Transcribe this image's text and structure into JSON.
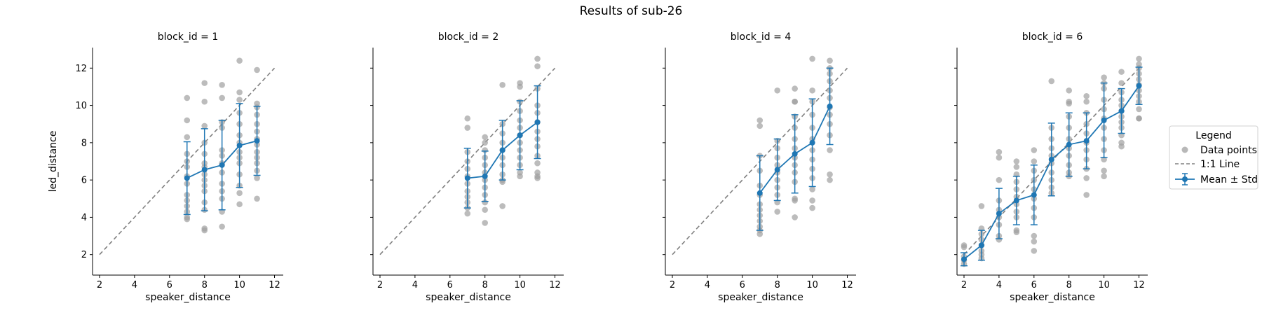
{
  "figure": {
    "title": "Results of sub-26"
  },
  "legend": {
    "title": "Legend",
    "entries": [
      {
        "label": "Data points",
        "kind": "scatter",
        "color": "#a0a0a0"
      },
      {
        "label": "1:1 Line",
        "kind": "dashed-line",
        "color": "#808080"
      },
      {
        "label": "Mean ± Std",
        "kind": "errorbar-line",
        "color": "#1f77b4"
      }
    ]
  },
  "colors": {
    "points": "#a0a0a0",
    "identity_line": "#808080",
    "mean": "#1f77b4"
  },
  "chart_data": [
    {
      "type": "scatter",
      "title": "block_id = 1",
      "xlabel": "speaker_distance",
      "ylabel": "led_distance",
      "xlim": [
        1.6,
        12.5
      ],
      "ylim": [
        0.9,
        13.1
      ],
      "xticks": [
        2,
        4,
        6,
        8,
        10,
        12
      ],
      "yticks": [
        2,
        4,
        6,
        8,
        10,
        12
      ],
      "identity_line": [
        2,
        12
      ],
      "points": {
        "7": [
          10.4,
          9.2,
          8.3,
          7.4,
          7.0,
          6.7,
          6.2,
          5.8,
          5.2,
          4.9,
          4.6,
          4.3,
          4.0,
          3.9
        ],
        "8": [
          11.2,
          10.2,
          8.9,
          8.0,
          7.4,
          6.9,
          6.7,
          6.3,
          6.0,
          5.7,
          5.4,
          4.8,
          4.4,
          3.4,
          3.3
        ],
        "9": [
          11.1,
          10.4,
          9.1,
          8.8,
          7.6,
          7.3,
          6.9,
          6.4,
          5.8,
          5.4,
          5.0,
          4.3,
          3.5
        ],
        "10": [
          12.4,
          10.7,
          10.3,
          9.6,
          9.0,
          8.4,
          8.0,
          7.5,
          7.2,
          6.9,
          6.3,
          5.7,
          5.3,
          4.7
        ],
        "11": [
          11.9,
          10.1,
          9.9,
          9.5,
          9.0,
          8.6,
          8.2,
          7.9,
          7.5,
          7.2,
          6.9,
          6.5,
          6.1,
          5.0
        ]
      },
      "mean": {
        "x": [
          7,
          8,
          9,
          10,
          11
        ],
        "y": [
          6.1,
          6.55,
          6.8,
          7.85,
          8.1
        ]
      },
      "std": [
        1.95,
        2.2,
        2.4,
        2.25,
        1.85
      ]
    },
    {
      "type": "scatter",
      "title": "block_id = 2",
      "xlabel": "speaker_distance",
      "ylabel": "",
      "xlim": [
        1.6,
        12.5
      ],
      "ylim": [
        0.9,
        13.1
      ],
      "xticks": [
        2,
        4,
        6,
        8,
        10,
        12
      ],
      "yticks": [
        2,
        4,
        6,
        8,
        10,
        12
      ],
      "identity_line": [
        2,
        12
      ],
      "points": {
        "7": [
          9.3,
          8.8,
          7.5,
          7.0,
          6.6,
          6.2,
          5.8,
          5.4,
          5.1,
          4.8,
          4.5,
          4.2
        ],
        "8": [
          8.3,
          8.0,
          7.6,
          7.2,
          6.8,
          6.4,
          6.0,
          5.6,
          5.2,
          4.8,
          4.4,
          3.7
        ],
        "9": [
          11.1,
          9.0,
          8.5,
          8.0,
          7.6,
          7.2,
          6.8,
          6.3,
          6.0,
          5.9,
          4.6
        ],
        "10": [
          11.2,
          11.0,
          10.2,
          9.7,
          9.2,
          8.8,
          8.4,
          8.0,
          7.6,
          7.2,
          6.8,
          6.4,
          6.2
        ],
        "11": [
          12.5,
          12.1,
          10.9,
          10.0,
          9.6,
          9.1,
          8.6,
          8.2,
          7.8,
          7.3,
          6.9,
          6.4,
          6.2,
          6.1
        ]
      },
      "mean": {
        "x": [
          7,
          8,
          9,
          10,
          11
        ],
        "y": [
          6.1,
          6.2,
          7.6,
          8.4,
          9.1
        ]
      },
      "std": [
        1.6,
        1.35,
        1.6,
        1.85,
        1.95
      ]
    },
    {
      "type": "scatter",
      "title": "block_id = 4",
      "xlabel": "speaker_distance",
      "ylabel": "",
      "xlim": [
        1.6,
        12.5
      ],
      "ylim": [
        0.9,
        13.1
      ],
      "xticks": [
        2,
        4,
        6,
        8,
        10,
        12
      ],
      "yticks": [
        2,
        4,
        6,
        8,
        10,
        12
      ],
      "identity_line": [
        2,
        12
      ],
      "points": {
        "7": [
          9.2,
          8.9,
          7.3,
          6.5,
          5.7,
          5.2,
          4.7,
          4.4,
          4.1,
          3.8,
          3.5,
          3.3,
          3.1
        ],
        "8": [
          10.8,
          8.1,
          7.7,
          7.2,
          6.8,
          6.4,
          6.0,
          5.6,
          5.2,
          4.8,
          4.3
        ],
        "9": [
          10.9,
          10.2,
          10.2,
          9.4,
          8.8,
          8.2,
          7.7,
          7.2,
          6.8,
          6.4,
          5.9,
          5.0,
          4.9,
          4.0
        ],
        "10": [
          12.5,
          10.8,
          10.2,
          9.5,
          8.8,
          8.2,
          7.6,
          7.1,
          6.6,
          6.1,
          5.5,
          4.9,
          4.5
        ],
        "11": [
          12.4,
          12.0,
          11.7,
          11.3,
          10.8,
          10.4,
          9.9,
          9.5,
          9.0,
          8.4,
          7.6,
          6.3,
          6.0
        ]
      },
      "mean": {
        "x": [
          7,
          8,
          9,
          10,
          11
        ],
        "y": [
          5.3,
          6.55,
          7.4,
          8.0,
          9.95
        ]
      },
      "std": [
        2.0,
        1.65,
        2.1,
        2.35,
        2.05
      ]
    },
    {
      "type": "scatter",
      "title": "block_id = 6",
      "xlabel": "speaker_distance",
      "ylabel": "",
      "xlim": [
        1.6,
        12.5
      ],
      "ylim": [
        0.9,
        13.1
      ],
      "xticks": [
        2,
        4,
        6,
        8,
        10,
        12
      ],
      "yticks": [
        2,
        4,
        6,
        8,
        10,
        12
      ],
      "identity_line": [
        2,
        12
      ],
      "points": {
        "2": [
          2.5,
          2.4,
          1.9,
          1.7,
          1.5
        ],
        "3": [
          4.6,
          3.4,
          3.1,
          2.8,
          2.5,
          2.2,
          2.0,
          1.8
        ],
        "4": [
          7.5,
          7.2,
          6.0,
          4.9,
          4.4,
          4.0,
          3.6,
          3.0,
          2.8
        ],
        "5": [
          7.0,
          6.7,
          6.3,
          5.9,
          5.5,
          5.1,
          4.7,
          4.3,
          4.0,
          3.3,
          3.2
        ],
        "6": [
          7.6,
          7.0,
          6.5,
          6.0,
          5.5,
          5.0,
          4.5,
          4.0,
          3.0,
          2.7,
          2.2
        ],
        "7": [
          11.3,
          8.8,
          8.2,
          7.7,
          7.3,
          6.9,
          6.4,
          6.0,
          5.6,
          5.3
        ],
        "8": [
          10.8,
          10.2,
          10.1,
          9.4,
          8.8,
          8.2,
          7.7,
          7.3,
          6.8,
          6.4,
          6.2
        ],
        "9": [
          10.5,
          10.2,
          9.6,
          9.0,
          8.5,
          8.0,
          7.6,
          7.1,
          6.6,
          6.1,
          5.2
        ],
        "10": [
          11.5,
          11.2,
          10.9,
          10.3,
          9.8,
          9.3,
          8.8,
          8.2,
          7.6,
          7.1,
          6.5,
          6.2
        ],
        "11": [
          11.8,
          11.2,
          10.7,
          10.3,
          10.0,
          9.7,
          9.4,
          9.1,
          8.8,
          8.4,
          8.0,
          7.8
        ],
        "12": [
          12.5,
          12.2,
          12.0,
          11.7,
          11.4,
          11.1,
          10.8,
          10.5,
          10.2,
          9.8,
          9.3,
          9.3
        ]
      },
      "mean": {
        "x": [
          2,
          3,
          4,
          5,
          6,
          7,
          8,
          9,
          10,
          11,
          12
        ],
        "y": [
          1.75,
          2.5,
          4.2,
          4.9,
          5.2,
          7.1,
          7.9,
          8.1,
          9.2,
          9.7,
          11.05
        ]
      },
      "std": [
        0.35,
        0.8,
        1.35,
        1.3,
        1.6,
        1.95,
        1.7,
        1.5,
        2.0,
        1.2,
        1.0
      ]
    }
  ]
}
